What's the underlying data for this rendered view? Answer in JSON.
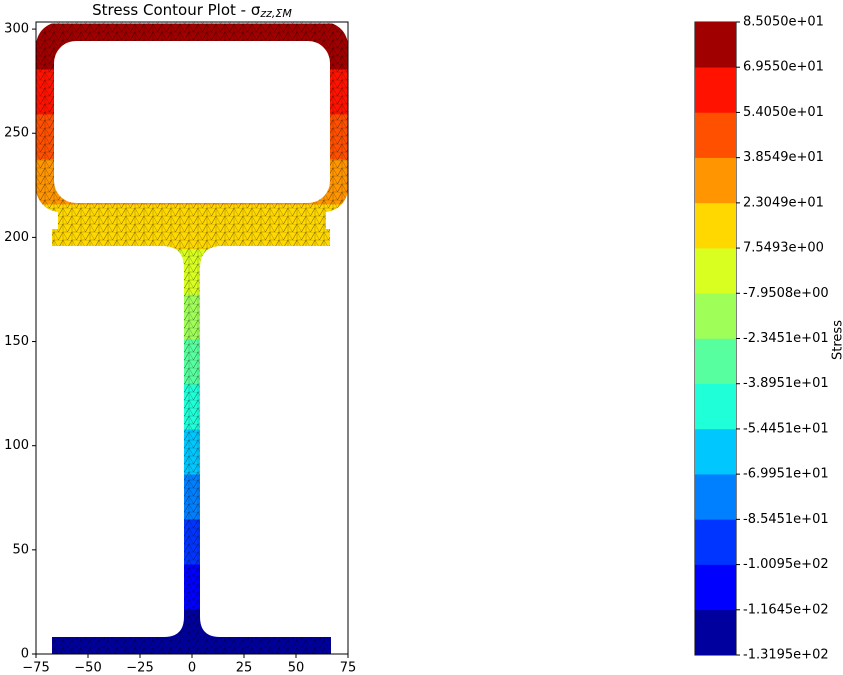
{
  "chart_data": {
    "type": "contour",
    "title": "Stress Contour Plot - σ",
    "title_subscript": "zz,ΣM",
    "xlim": [
      -75,
      75
    ],
    "ylim": [
      0,
      303.4
    ],
    "xticks": [
      {
        "value": -75,
        "label": "−75"
      },
      {
        "value": -50,
        "label": "−50"
      },
      {
        "value": -25,
        "label": "−25"
      },
      0,
      25,
      50,
      75
    ],
    "yticks": [
      0,
      50,
      100,
      150,
      200,
      250,
      300
    ],
    "colorbar": {
      "label": "Stress",
      "ticks": [
        {
          "value": -131.95,
          "label": "-1.3195e+02"
        },
        {
          "value": -116.45,
          "label": "-1.1645e+02"
        },
        {
          "value": -100.95,
          "label": "-1.0095e+02"
        },
        {
          "value": -85.451,
          "label": "-8.5451e+01"
        },
        {
          "value": -69.951,
          "label": "-6.9951e+01"
        },
        {
          "value": -54.451,
          "label": "-5.4451e+01"
        },
        {
          "value": -38.951,
          "label": "-3.8951e+01"
        },
        {
          "value": -23.451,
          "label": "-2.3451e+01"
        },
        {
          "value": -7.9508,
          "label": "-7.9508e+00"
        },
        {
          "value": 7.5493,
          "label": "7.5493e+00"
        },
        {
          "value": 23.049,
          "label": "2.3049e+01"
        },
        {
          "value": 38.549,
          "label": "3.8549e+01"
        },
        {
          "value": 54.05,
          "label": "5.4050e+01"
        },
        {
          "value": 69.55,
          "label": "6.9550e+01"
        },
        {
          "value": 85.05,
          "label": "8.5050e+01"
        }
      ],
      "colors": [
        "#00009f",
        "#0000ff",
        "#0034ff",
        "#0080ff",
        "#00c8ff",
        "#1fffd8",
        "#58ff9f",
        "#9fff58",
        "#d8ff1f",
        "#ffd800",
        "#ff9500",
        "#ff5000",
        "#ff1300",
        "#a00000"
      ]
    }
  }
}
